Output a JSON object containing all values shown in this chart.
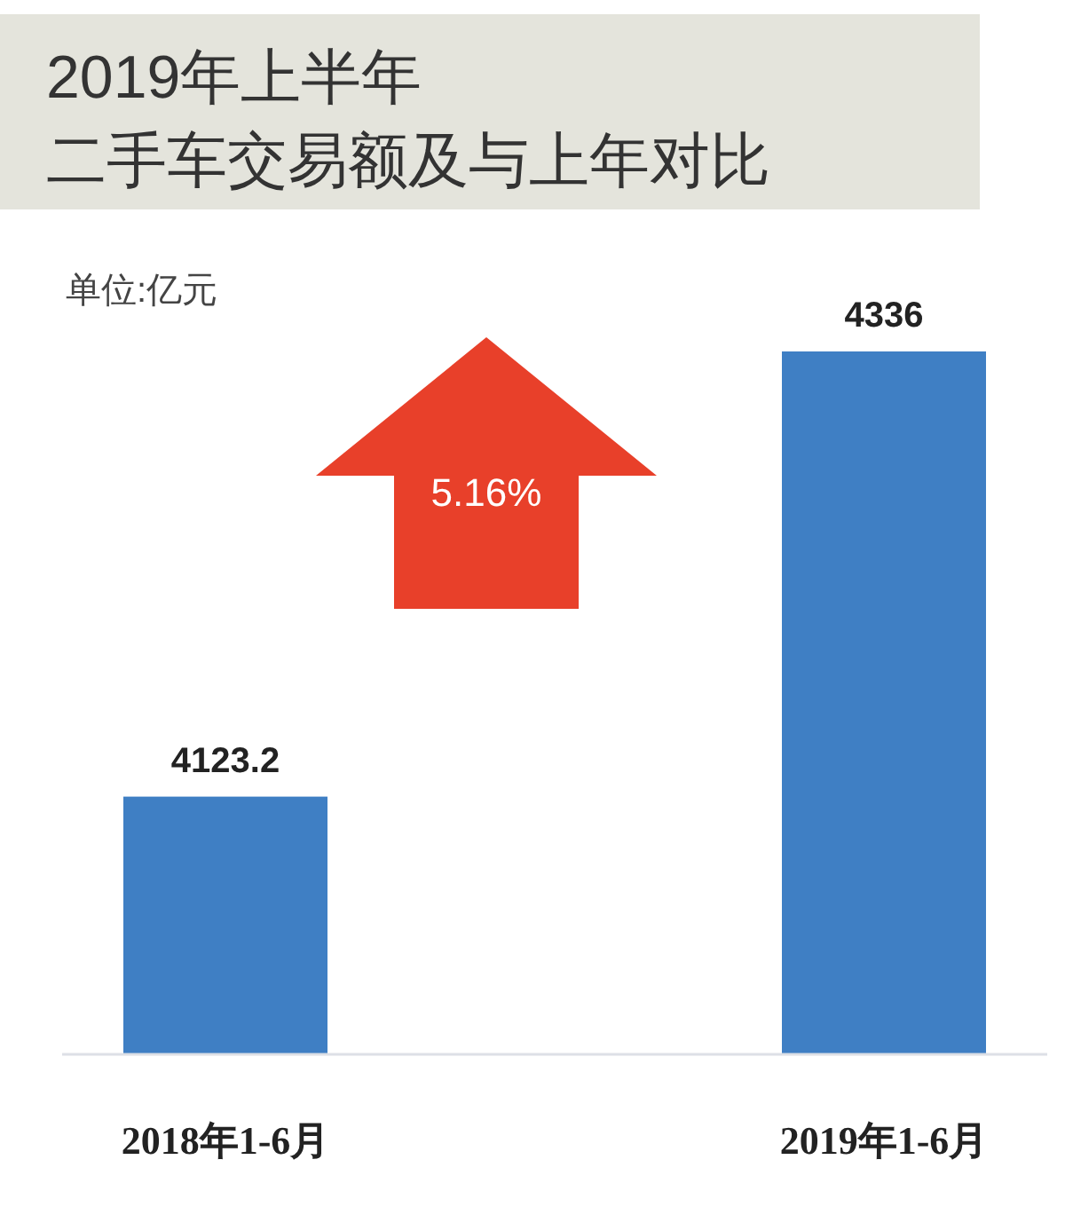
{
  "chart_data": {
    "type": "bar",
    "title": "2019年上半年",
    "subtitle": "二手车交易额及与上年对比",
    "categories": [
      "2018年1-6月",
      "2019年1-6月"
    ],
    "values": [
      4123.2,
      4336
    ],
    "color": "#3f7fc4",
    "ylim": [
      4000,
      4336
    ],
    "data_labels": true,
    "annotations": [
      "单位:亿元",
      "5.16%"
    ]
  }
}
